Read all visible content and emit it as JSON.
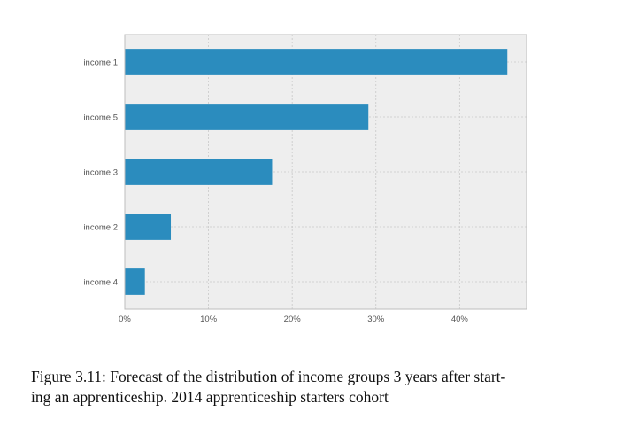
{
  "chart_data": {
    "type": "bar",
    "orientation": "horizontal",
    "categories": [
      "income 1",
      "income 5",
      "income 3",
      "income 2",
      "income 4"
    ],
    "values": [
      45.7,
      29.1,
      17.6,
      5.5,
      2.4
    ],
    "xlim": [
      0,
      48
    ],
    "xticks": [
      0,
      10,
      20,
      30,
      40
    ],
    "xtick_labels": [
      "0%",
      "10%",
      "20%",
      "30%",
      "40%"
    ],
    "title": "",
    "xlabel": "",
    "ylabel": "",
    "grid": true,
    "bar_color": "#2b8cbe",
    "background_color": "#eeeeee"
  },
  "caption": {
    "line1": "Figure 3.11: Forecast of the distribution of income groups 3 years after start-",
    "line2": "ing an apprenticeship. 2014 apprenticeship starters cohort"
  }
}
